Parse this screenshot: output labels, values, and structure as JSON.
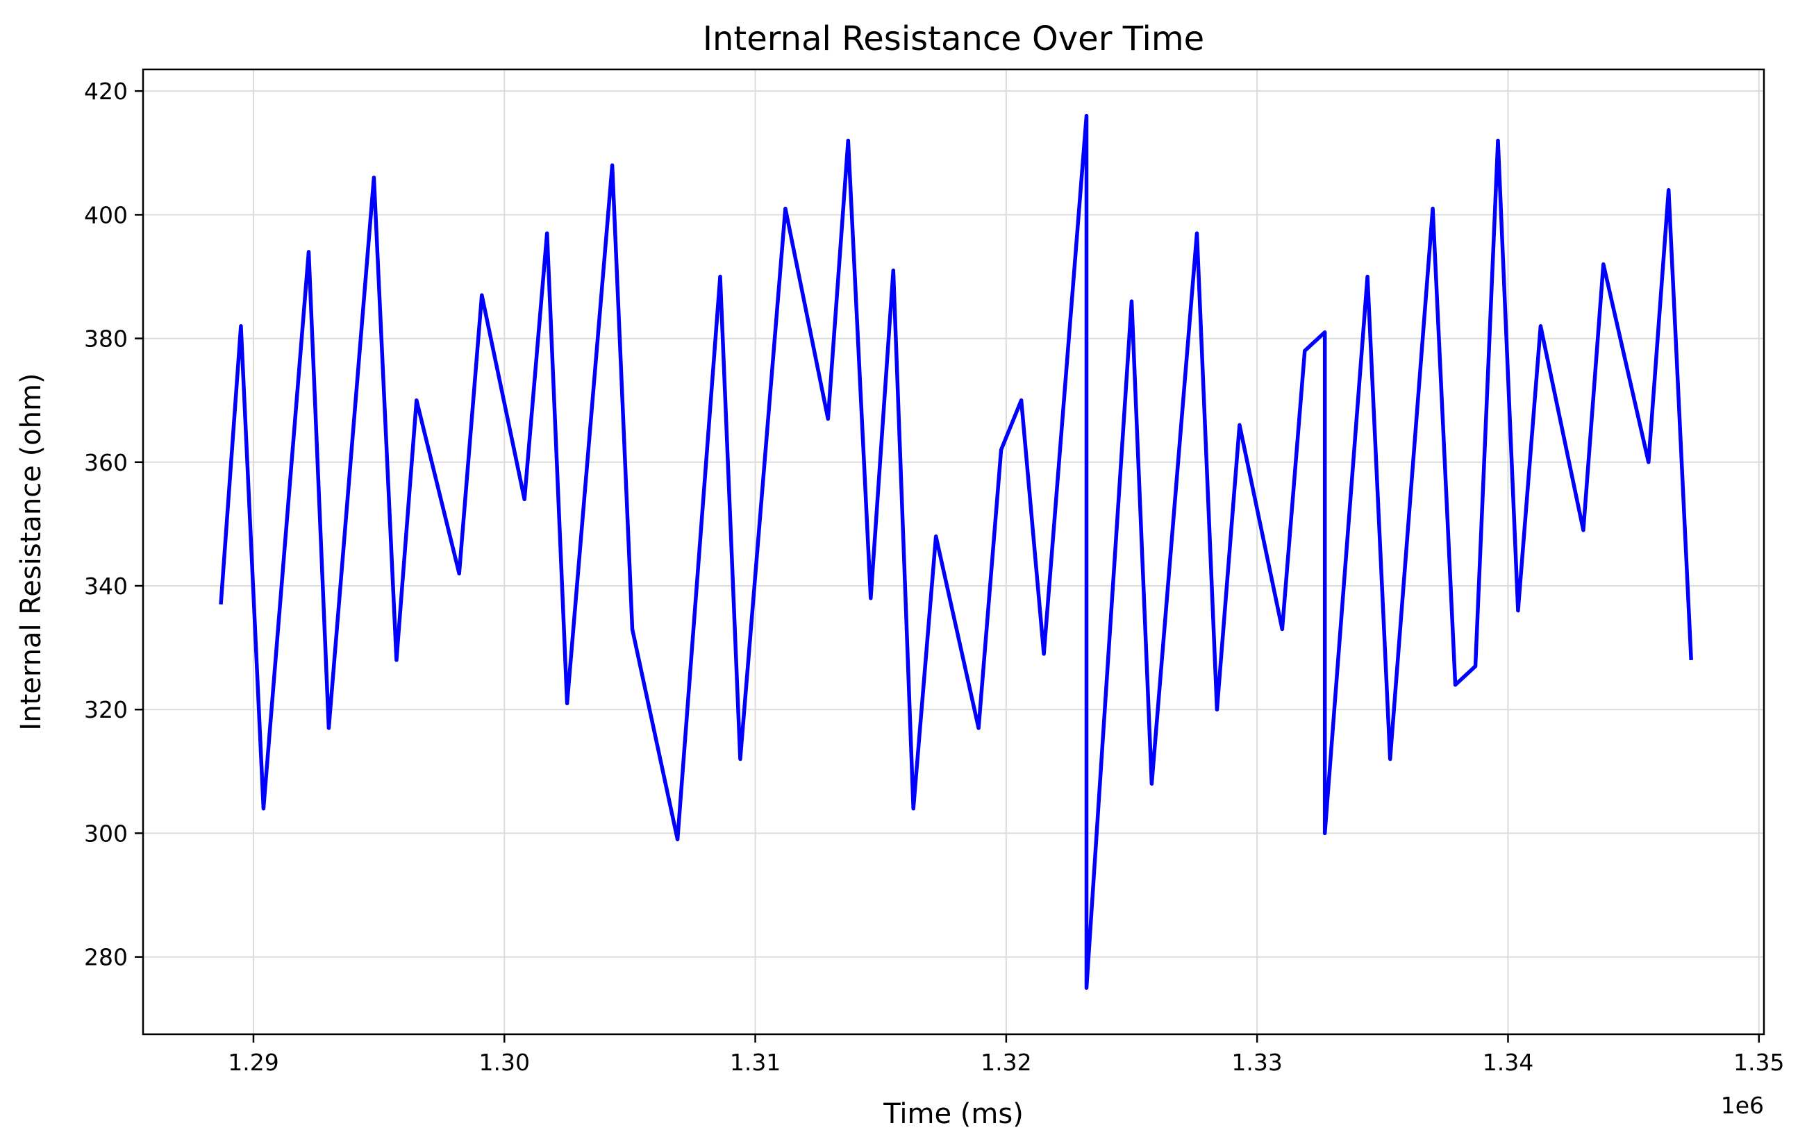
{
  "chart_data": {
    "type": "line",
    "title": "Internal Resistance Over Time",
    "xlabel": "Time (ms)",
    "ylabel": "Internal Resistance (ohm)",
    "x_offset_label": "1e6",
    "xlim": [
      1.2856,
      1.3502
    ],
    "ylim": [
      267.5,
      423.5
    ],
    "x_ticks": [
      1.29,
      1.3,
      1.31,
      1.32,
      1.33,
      1.34,
      1.35
    ],
    "x_tick_labels": [
      "1.29",
      "1.30",
      "1.31",
      "1.32",
      "1.33",
      "1.34",
      "1.35"
    ],
    "y_ticks": [
      280,
      300,
      320,
      340,
      360,
      380,
      400,
      420
    ],
    "y_tick_labels": [
      "280",
      "300",
      "320",
      "340",
      "360",
      "380",
      "400",
      "420"
    ],
    "grid": true,
    "color": "#0000ff",
    "series": [
      {
        "x": [
          1.2887,
          1.2895,
          1.2904,
          1.2922,
          1.293,
          1.2948,
          1.2957,
          1.2965,
          1.2982,
          1.2991,
          1.3008,
          1.3017,
          1.3025,
          1.3043,
          1.3051,
          1.3069,
          1.3086,
          1.3094,
          1.3112,
          1.3129,
          1.3137,
          1.3146,
          1.3155,
          1.3163,
          1.3172,
          1.3189,
          1.3198,
          1.3206,
          1.3215,
          1.3232,
          1.3232,
          1.325,
          1.3258,
          1.3276,
          1.3284,
          1.3293,
          1.331,
          1.3319,
          1.3327,
          1.3327,
          1.3344,
          1.3353,
          1.337,
          1.3379,
          1.3387,
          1.3396,
          1.3404,
          1.3413,
          1.343,
          1.3438,
          1.3456,
          1.3464,
          1.3473
        ],
        "y": [
          337,
          382,
          304,
          394,
          317,
          406,
          328,
          370,
          342,
          387,
          354,
          397,
          321,
          408,
          333,
          299,
          390,
          312,
          401,
          367,
          412,
          338,
          391,
          304,
          348,
          317,
          362,
          370,
          329,
          416,
          275,
          386,
          308,
          397,
          320,
          366,
          333,
          378,
          381,
          300,
          390,
          312,
          401,
          324,
          327,
          412,
          336,
          382,
          349,
          392,
          360,
          404,
          328
        ]
      }
    ]
  }
}
